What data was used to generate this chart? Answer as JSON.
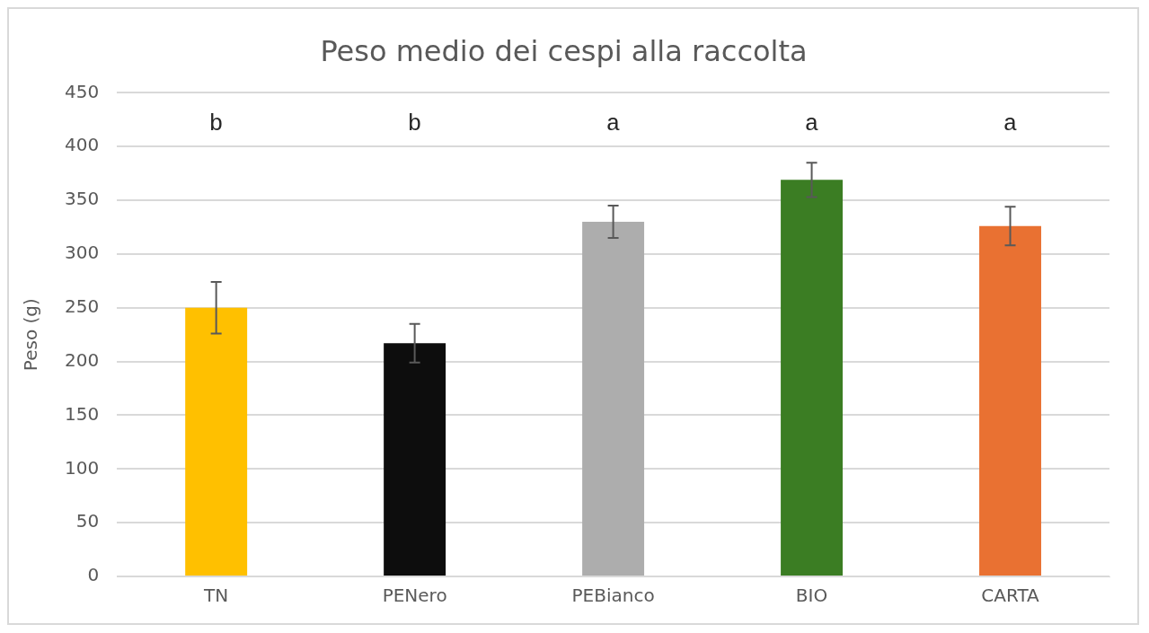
{
  "chart_data": {
    "type": "bar",
    "title": "Peso medio dei cespi alla raccolta",
    "ylabel": "Peso (g)",
    "categories": [
      "TN",
      "PENero",
      "PEBianco",
      "BIO",
      "CARTA"
    ],
    "values": [
      250,
      217,
      330,
      369,
      326
    ],
    "colors": [
      "#ffc000",
      "#0d0d0d",
      "#adadad",
      "#3b7d23",
      "#e97132"
    ],
    "errors": [
      24,
      18,
      15,
      16,
      18
    ],
    "ylim": [
      0,
      450
    ],
    "yticks": [
      0,
      50,
      100,
      150,
      200,
      250,
      300,
      350,
      400,
      450
    ],
    "grid": "y",
    "legend": false,
    "annotations": [
      "b",
      "b",
      "a",
      "a",
      "a"
    ]
  }
}
